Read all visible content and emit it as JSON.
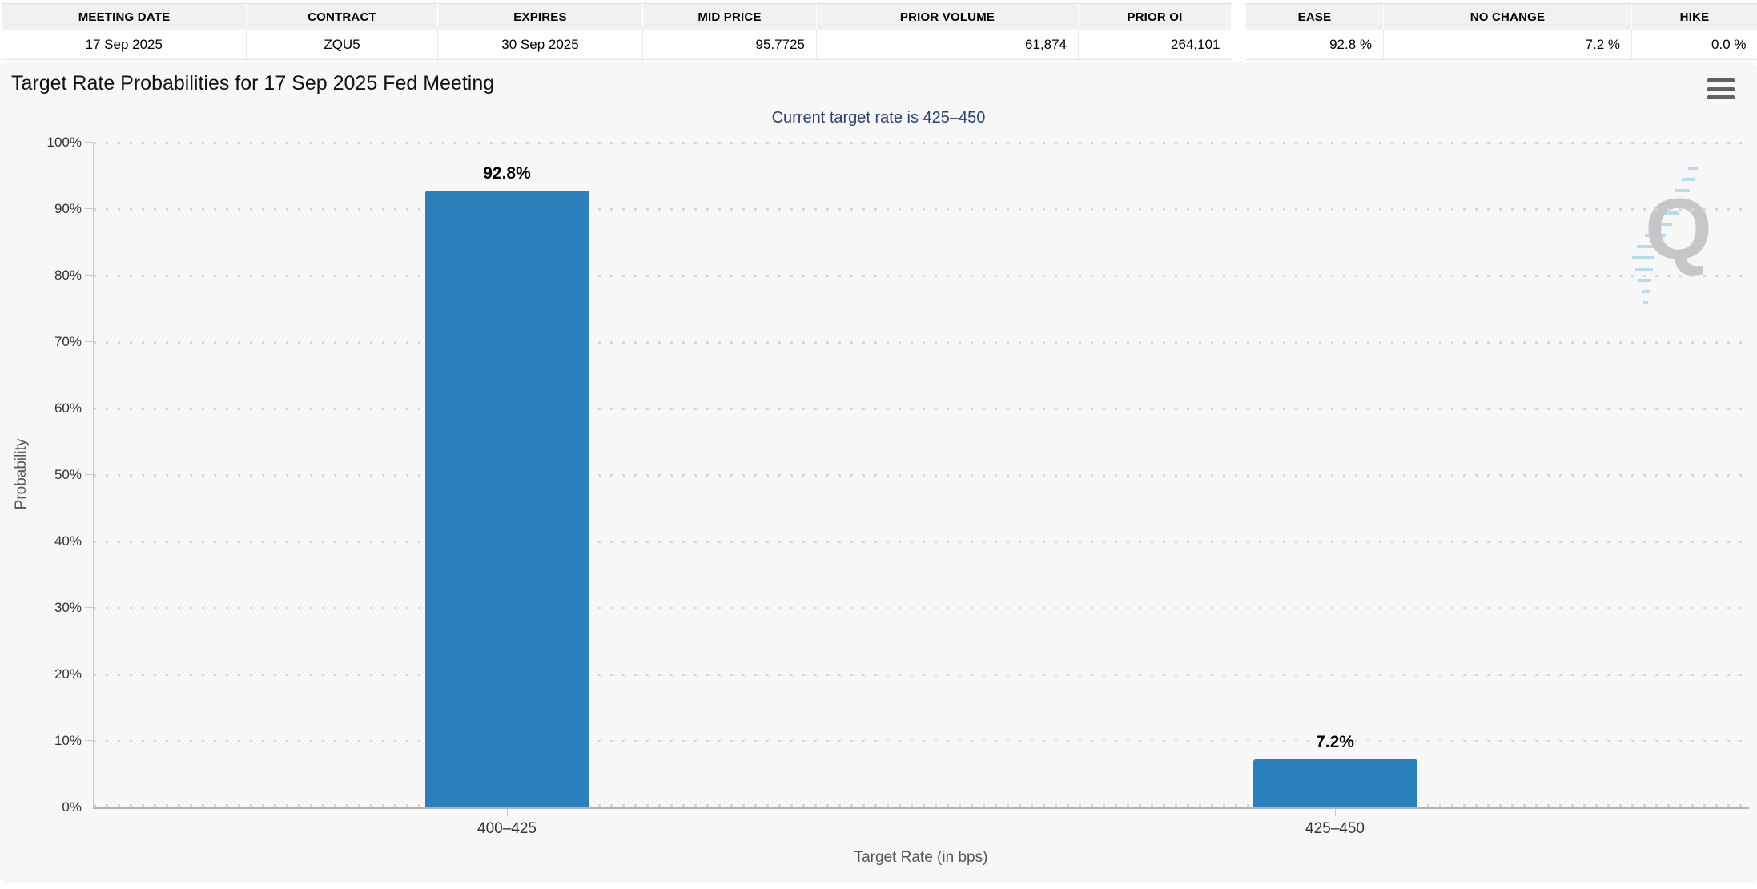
{
  "contract_table": {
    "headers": [
      "MEETING DATE",
      "CONTRACT",
      "EXPIRES",
      "MID PRICE",
      "PRIOR VOLUME",
      "PRIOR OI"
    ],
    "row": {
      "meeting_date": "17 Sep 2025",
      "contract": "ZQU5",
      "expires": "30 Sep 2025",
      "mid_price": "95.7725",
      "prior_volume": "61,874",
      "prior_oi": "264,101"
    }
  },
  "probability_table": {
    "headers": [
      "EASE",
      "NO CHANGE",
      "HIKE"
    ],
    "row": {
      "ease": "92.8 %",
      "no_change": "7.2 %",
      "hike": "0.0 %"
    }
  },
  "chart": {
    "title": "Target Rate Probabilities for 17 Sep 2025 Fed Meeting",
    "subtitle": "Current target rate is 425–450",
    "menu_icon": "hamburger-menu",
    "watermark_letter": "Q"
  },
  "chart_data": {
    "type": "bar",
    "title": "Target Rate Probabilities for 17 Sep 2025 Fed Meeting",
    "subtitle": "Current target rate is 425–450",
    "categories": [
      "400–425",
      "425–450"
    ],
    "values": [
      92.8,
      7.2
    ],
    "data_labels": [
      "92.8%",
      "7.2%"
    ],
    "xlabel": "Target Rate (in bps)",
    "ylabel": "Probability",
    "ylim": [
      0,
      100
    ],
    "yticks": [
      "0%",
      "10%",
      "20%",
      "30%",
      "40%",
      "50%",
      "60%",
      "70%",
      "80%",
      "90%",
      "100%"
    ],
    "grid": "dotted horizontal",
    "legend": "none",
    "bar_color": "#2a80bb"
  },
  "colors": {
    "bar": "#2a80bb",
    "subtitle_text": "#29417c",
    "chart_background": "#f7f7f7",
    "table_header_background": "#f1f1f1",
    "axis_line": "#c9c9c9",
    "gridline": "#d7d7d7",
    "watermark_gray": "#c6c6c6",
    "watermark_blue": "#b5ddf0"
  }
}
